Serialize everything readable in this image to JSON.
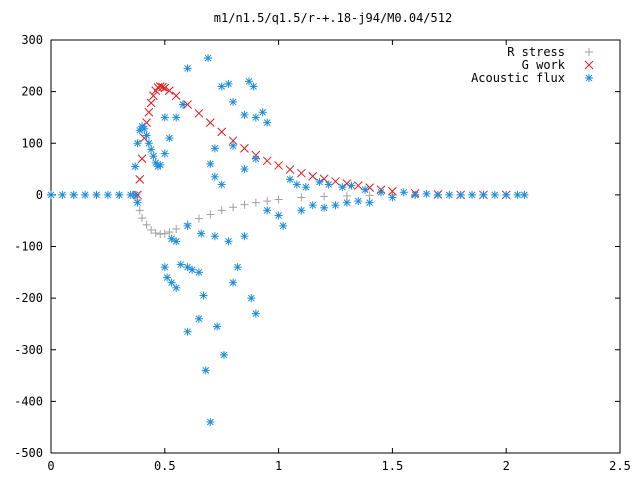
{
  "chart_data": {
    "type": "scatter",
    "title": "m1/n1.5/q1.5/r-+.18-j94/M0.04/512",
    "xlabel": "",
    "ylabel": "",
    "xlim": [
      0,
      2.5
    ],
    "ylim": [
      -500,
      300
    ],
    "x_ticks": [
      "0",
      "0.5",
      "1",
      "1.5",
      "2",
      "2.5"
    ],
    "y_ticks": [
      "300",
      "200",
      "100",
      "0",
      "-100",
      "-200",
      "-300",
      "-400",
      "-500"
    ],
    "grid": false,
    "legend_position": "top-right",
    "series": [
      {
        "name": "R stress",
        "marker": "plus",
        "color": "#a0a0a0",
        "points": [
          [
            0,
            0
          ],
          [
            0.1,
            0
          ],
          [
            0.2,
            0
          ],
          [
            0.3,
            0
          ],
          [
            0.36,
            0
          ],
          [
            0.375,
            0
          ],
          [
            0.38,
            -10
          ],
          [
            0.39,
            -30
          ],
          [
            0.4,
            -45
          ],
          [
            0.42,
            -58
          ],
          [
            0.44,
            -68
          ],
          [
            0.46,
            -74
          ],
          [
            0.48,
            -76
          ],
          [
            0.5,
            -75
          ],
          [
            0.52,
            -72
          ],
          [
            0.55,
            -66
          ],
          [
            0.6,
            -56
          ],
          [
            0.65,
            -46
          ],
          [
            0.7,
            -38
          ],
          [
            0.75,
            -30
          ],
          [
            0.8,
            -24
          ],
          [
            0.85,
            -19
          ],
          [
            0.9,
            -15
          ],
          [
            0.95,
            -12
          ],
          [
            1.0,
            -9
          ],
          [
            1.1,
            -5
          ],
          [
            1.2,
            -3
          ],
          [
            1.3,
            -2
          ],
          [
            1.4,
            -1
          ],
          [
            1.5,
            0
          ],
          [
            1.6,
            0
          ],
          [
            1.7,
            0
          ],
          [
            1.8,
            0
          ],
          [
            1.9,
            0
          ],
          [
            2.0,
            0
          ],
          [
            2.08,
            0
          ]
        ]
      },
      {
        "name": "G work",
        "marker": "cross",
        "color": "#e41a1c",
        "points": [
          [
            0.38,
            0
          ],
          [
            0.39,
            30
          ],
          [
            0.4,
            70
          ],
          [
            0.41,
            110
          ],
          [
            0.42,
            140
          ],
          [
            0.43,
            160
          ],
          [
            0.44,
            178
          ],
          [
            0.45,
            192
          ],
          [
            0.46,
            202
          ],
          [
            0.47,
            208
          ],
          [
            0.48,
            210
          ],
          [
            0.49,
            209
          ],
          [
            0.5,
            207
          ],
          [
            0.52,
            202
          ],
          [
            0.55,
            192
          ],
          [
            0.6,
            175
          ],
          [
            0.65,
            158
          ],
          [
            0.7,
            140
          ],
          [
            0.75,
            122
          ],
          [
            0.8,
            105
          ],
          [
            0.85,
            90
          ],
          [
            0.9,
            77
          ],
          [
            0.95,
            66
          ],
          [
            1.0,
            57
          ],
          [
            1.05,
            49
          ],
          [
            1.1,
            42
          ],
          [
            1.15,
            36
          ],
          [
            1.2,
            31
          ],
          [
            1.25,
            26
          ],
          [
            1.3,
            22
          ],
          [
            1.35,
            18
          ],
          [
            1.4,
            14
          ],
          [
            1.45,
            10
          ],
          [
            1.5,
            7
          ],
          [
            1.6,
            3
          ],
          [
            1.7,
            1
          ],
          [
            1.8,
            0
          ],
          [
            1.9,
            0
          ],
          [
            2.0,
            0
          ]
        ]
      },
      {
        "name": "Acoustic flux",
        "marker": "star",
        "color": "#1c8ddb",
        "points": [
          [
            0,
            0
          ],
          [
            0.05,
            0
          ],
          [
            0.1,
            0
          ],
          [
            0.15,
            0
          ],
          [
            0.2,
            0
          ],
          [
            0.25,
            0
          ],
          [
            0.3,
            0
          ],
          [
            0.35,
            0
          ],
          [
            0.37,
            0
          ],
          [
            0.38,
            -15
          ],
          [
            0.37,
            55
          ],
          [
            0.38,
            100
          ],
          [
            0.39,
            125
          ],
          [
            0.4,
            133
          ],
          [
            0.41,
            128
          ],
          [
            0.42,
            115
          ],
          [
            0.43,
            100
          ],
          [
            0.44,
            88
          ],
          [
            0.45,
            75
          ],
          [
            0.46,
            62
          ],
          [
            0.47,
            55
          ],
          [
            0.48,
            58
          ],
          [
            0.5,
            80
          ],
          [
            0.52,
            110
          ],
          [
            0.55,
            150
          ],
          [
            0.58,
            175
          ],
          [
            0.5,
            150
          ],
          [
            0.53,
            -85
          ],
          [
            0.55,
            -90
          ],
          [
            0.51,
            -160
          ],
          [
            0.5,
            -140
          ],
          [
            0.53,
            -170
          ],
          [
            0.55,
            -180
          ],
          [
            0.57,
            -135
          ],
          [
            0.6,
            -140
          ],
          [
            0.62,
            -145
          ],
          [
            0.65,
            -150
          ],
          [
            0.67,
            -195
          ],
          [
            0.6,
            -265
          ],
          [
            0.65,
            -240
          ],
          [
            0.68,
            -340
          ],
          [
            0.7,
            -440
          ],
          [
            0.73,
            -255
          ],
          [
            0.76,
            -310
          ],
          [
            0.8,
            -170
          ],
          [
            0.82,
            -140
          ],
          [
            0.88,
            -200
          ],
          [
            0.9,
            -230
          ],
          [
            0.85,
            -80
          ],
          [
            0.78,
            -90
          ],
          [
            0.72,
            -80
          ],
          [
            0.66,
            -75
          ],
          [
            0.6,
            -60
          ],
          [
            0.6,
            245
          ],
          [
            0.69,
            265
          ],
          [
            0.72,
            90
          ],
          [
            0.75,
            210
          ],
          [
            0.78,
            215
          ],
          [
            0.8,
            180
          ],
          [
            0.85,
            155
          ],
          [
            0.87,
            220
          ],
          [
            0.89,
            210
          ],
          [
            0.9,
            150
          ],
          [
            0.93,
            160
          ],
          [
            0.95,
            140
          ],
          [
            0.7,
            60
          ],
          [
            0.72,
            35
          ],
          [
            0.75,
            20
          ],
          [
            0.8,
            95
          ],
          [
            0.85,
            50
          ],
          [
            0.9,
            70
          ],
          [
            0.95,
            -30
          ],
          [
            1.0,
            -40
          ],
          [
            1.02,
            -60
          ],
          [
            1.05,
            30
          ],
          [
            1.08,
            20
          ],
          [
            1.1,
            -30
          ],
          [
            1.12,
            15
          ],
          [
            1.15,
            -20
          ],
          [
            1.18,
            25
          ],
          [
            1.2,
            -25
          ],
          [
            1.22,
            20
          ],
          [
            1.25,
            -20
          ],
          [
            1.28,
            15
          ],
          [
            1.3,
            -15
          ],
          [
            1.32,
            18
          ],
          [
            1.35,
            -12
          ],
          [
            1.38,
            10
          ],
          [
            1.4,
            -15
          ],
          [
            1.45,
            5
          ],
          [
            1.5,
            -5
          ],
          [
            1.55,
            5
          ],
          [
            1.6,
            0
          ],
          [
            1.65,
            2
          ],
          [
            1.7,
            0
          ],
          [
            1.75,
            0
          ],
          [
            1.8,
            0
          ],
          [
            1.85,
            0
          ],
          [
            1.9,
            0
          ],
          [
            1.95,
            0
          ],
          [
            2.0,
            0
          ],
          [
            2.05,
            0
          ],
          [
            2.08,
            0
          ]
        ]
      }
    ]
  }
}
